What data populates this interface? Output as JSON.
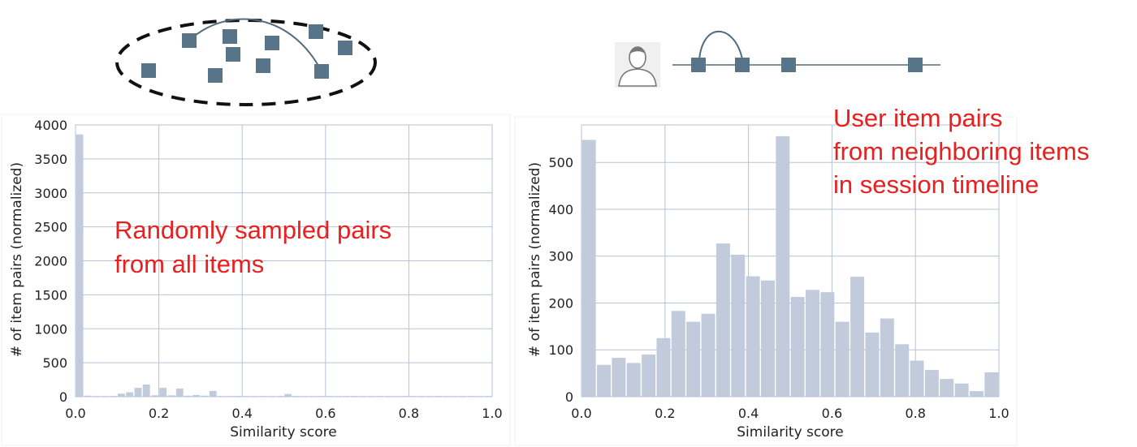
{
  "colors": {
    "bar": "#c1cbdb",
    "grid": "#b7c3d4",
    "node": "#587488",
    "annotation": "#e8201f"
  },
  "icons": [
    "dashed-ellipse-item-cluster",
    "user-avatar-icon",
    "session-timeline"
  ],
  "chart_data": [
    {
      "type": "bar",
      "subtype": "histogram",
      "title": "",
      "annotation": [
        "Randomly sampled pairs",
        "from all items"
      ],
      "xlabel": "Similarity score",
      "ylabel": "# of item pairs (normalized)",
      "xlim": [
        0.0,
        1.0
      ],
      "ylim": [
        0,
        4000
      ],
      "xticks": [
        "0.0",
        "0.2",
        "0.4",
        "0.6",
        "0.8",
        "1.0"
      ],
      "yticks": [
        "0",
        "500",
        "1000",
        "1500",
        "2000",
        "2500",
        "3000",
        "3500",
        "4000"
      ],
      "grid": true,
      "bin_width": 0.02,
      "bins_start": [
        0.0,
        0.02,
        0.04,
        0.06,
        0.08,
        0.1,
        0.12,
        0.14,
        0.16,
        0.18,
        0.2,
        0.22,
        0.24,
        0.26,
        0.28,
        0.3,
        0.32,
        0.34,
        0.36,
        0.38,
        0.4,
        0.42,
        0.44,
        0.46,
        0.48,
        0.5,
        0.52,
        0.54,
        0.56,
        0.58,
        0.6,
        0.62,
        0.64,
        0.66,
        0.68,
        0.7,
        0.72,
        0.74,
        0.76,
        0.78,
        0.8,
        0.82,
        0.84,
        0.86,
        0.88,
        0.9,
        0.92,
        0.94,
        0.96,
        0.98
      ],
      "values": [
        3860,
        15,
        10,
        10,
        10,
        45,
        65,
        130,
        180,
        20,
        130,
        20,
        120,
        15,
        25,
        15,
        85,
        10,
        10,
        10,
        10,
        10,
        10,
        10,
        10,
        40,
        10,
        10,
        10,
        10,
        10,
        10,
        10,
        10,
        10,
        10,
        10,
        10,
        10,
        10,
        10,
        10,
        10,
        10,
        10,
        10,
        10,
        10,
        10,
        10
      ]
    },
    {
      "type": "bar",
      "subtype": "histogram",
      "title": "",
      "annotation": [
        "User item pairs",
        "from neighboring items",
        "in session timeline"
      ],
      "xlabel": "Similarity score",
      "ylabel": "# of item pairs (normalized)",
      "xlim": [
        0.0,
        1.0
      ],
      "ylim": [
        0,
        580
      ],
      "xticks": [
        "0.0",
        "0.2",
        "0.4",
        "0.6",
        "0.8",
        "1.0"
      ],
      "yticks": [
        "0",
        "100",
        "200",
        "300",
        "400",
        "500"
      ],
      "grid": true,
      "bin_width": 0.0357,
      "bins_start": [
        0.0,
        0.0357,
        0.0714,
        0.1071,
        0.1429,
        0.1786,
        0.2143,
        0.25,
        0.2857,
        0.3214,
        0.3571,
        0.3929,
        0.4286,
        0.4643,
        0.5,
        0.5357,
        0.5714,
        0.6071,
        0.6429,
        0.6786,
        0.7143,
        0.75,
        0.7857,
        0.8214,
        0.8571,
        0.8929,
        0.9286,
        0.9643
      ],
      "values": [
        548,
        68,
        83,
        72,
        90,
        125,
        183,
        160,
        177,
        327,
        303,
        257,
        248,
        556,
        213,
        228,
        223,
        160,
        256,
        137,
        167,
        112,
        77,
        57,
        38,
        28,
        12,
        52
      ]
    }
  ]
}
